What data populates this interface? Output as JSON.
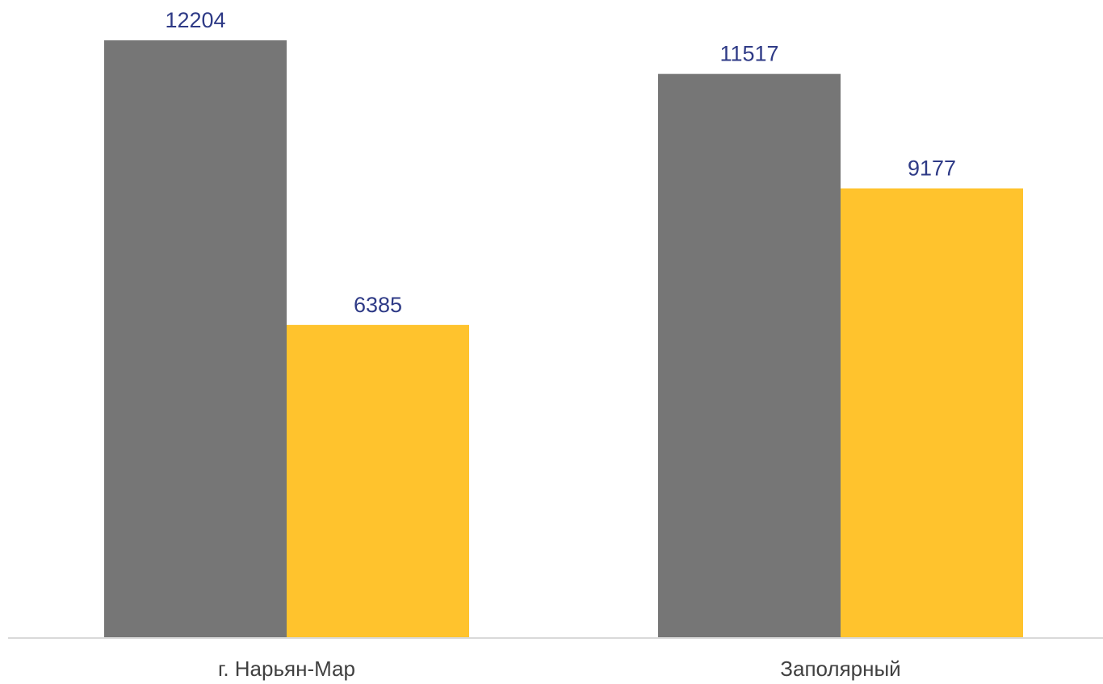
{
  "chart_data": {
    "type": "bar",
    "title": "",
    "xlabel": "",
    "ylabel": "",
    "categories": [
      "г. Нарьян-Мар",
      "Заполярный"
    ],
    "series": [
      {
        "values": [
          12204,
          11517
        ],
        "color": "#767676"
      },
      {
        "values": [
          6385,
          9177
        ],
        "color": "#FFC32D"
      }
    ],
    "ylim": [
      0,
      12204
    ],
    "grid": false,
    "legend": "none",
    "data_labels": true,
    "colors": {
      "value_label": "#2E3A86",
      "category_label": "#404040",
      "axis": "#D9D9D9"
    }
  }
}
